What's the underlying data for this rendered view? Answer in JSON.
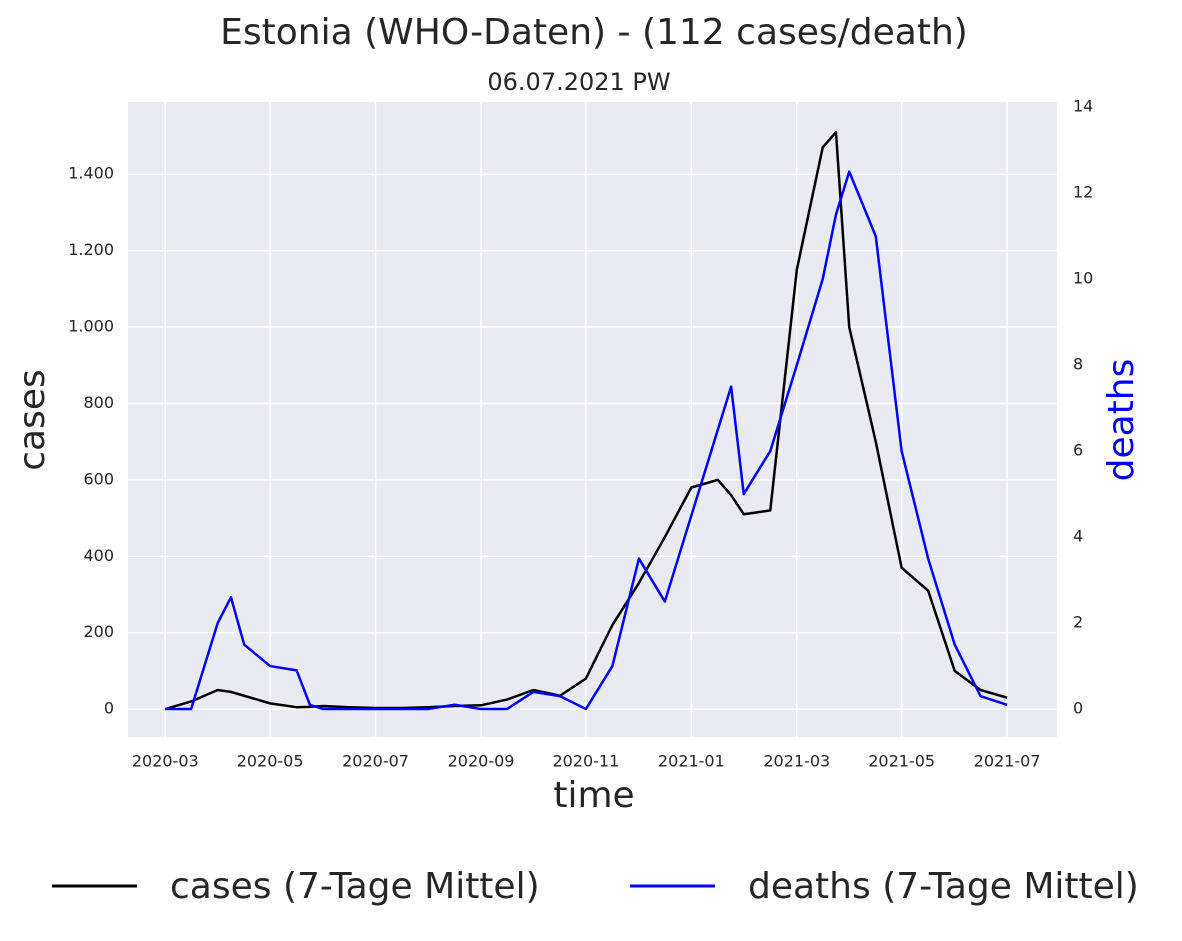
{
  "chart_data": {
    "type": "line",
    "title": "Estonia (WHO-Daten) - (112 cases/death)",
    "subtitle": "06.07.2021 PW",
    "x_label": "time",
    "y_label": "cases",
    "y2_label": "deaths",
    "x": [
      2020.167,
      2020.208,
      2020.25,
      2020.271,
      2020.292,
      2020.333,
      2020.375,
      2020.396,
      2020.417,
      2020.458,
      2020.5,
      2020.542,
      2020.583,
      2020.625,
      2020.667,
      2020.708,
      2020.75,
      2020.792,
      2020.833,
      2020.875,
      2020.917,
      2020.958,
      2021.0,
      2021.042,
      2021.063,
      2021.083,
      2021.125,
      2021.167,
      2021.208,
      2021.229,
      2021.25,
      2021.292,
      2021.333,
      2021.375,
      2021.417,
      2021.458,
      2021.5
    ],
    "series": [
      {
        "name": "cases (7-Tage Mittel)",
        "color": "#000000",
        "values": [
          0,
          20,
          50,
          45,
          35,
          15,
          5,
          6,
          8,
          5,
          3,
          3,
          5,
          8,
          10,
          25,
          50,
          35,
          80,
          220,
          330,
          450,
          580,
          600,
          560,
          510,
          520,
          1150,
          1470,
          1510,
          1000,
          700,
          370,
          310,
          100,
          50,
          30
        ]
      },
      {
        "name": "deaths (7-Tage Mittel)",
        "color": "#0000ff",
        "axis": "y2",
        "values": [
          0,
          0,
          2.0,
          2.6,
          1.5,
          1.0,
          0.9,
          0.1,
          0,
          0,
          0,
          0,
          0,
          0.1,
          0,
          0,
          0.4,
          0.3,
          0,
          1.0,
          3.5,
          2.5,
          4.5,
          6.5,
          7.5,
          5.0,
          6.0,
          8.0,
          10.0,
          11.5,
          12.5,
          11.0,
          6.0,
          3.5,
          1.5,
          0.3,
          0.1
        ]
      }
    ],
    "xlim": [
      2020.108,
      2021.579
    ],
    "xticks": [
      {
        "value": 2020.167,
        "label": "2020-03"
      },
      {
        "value": 2020.333,
        "label": "2020-05"
      },
      {
        "value": 2020.5,
        "label": "2020-07"
      },
      {
        "value": 2020.667,
        "label": "2020-09"
      },
      {
        "value": 2020.833,
        "label": "2020-11"
      },
      {
        "value": 2021.0,
        "label": "2021-01"
      },
      {
        "value": 2021.167,
        "label": "2021-03"
      },
      {
        "value": 2021.333,
        "label": "2021-05"
      },
      {
        "value": 2021.5,
        "label": "2021-07"
      }
    ],
    "ylim": [
      -73,
      1589
    ],
    "yticks": [
      0,
      200,
      400,
      600,
      800,
      {
        "value": 1000,
        "label": "1.000"
      },
      {
        "value": 1200,
        "label": "1.200"
      },
      {
        "value": 1400,
        "label": "1.400"
      }
    ],
    "y2lim": [
      -0.65,
      14.12
    ],
    "y2ticks": [
      0,
      2,
      4,
      6,
      8,
      10,
      12,
      14
    ],
    "grid": true,
    "legend": "bottom"
  }
}
